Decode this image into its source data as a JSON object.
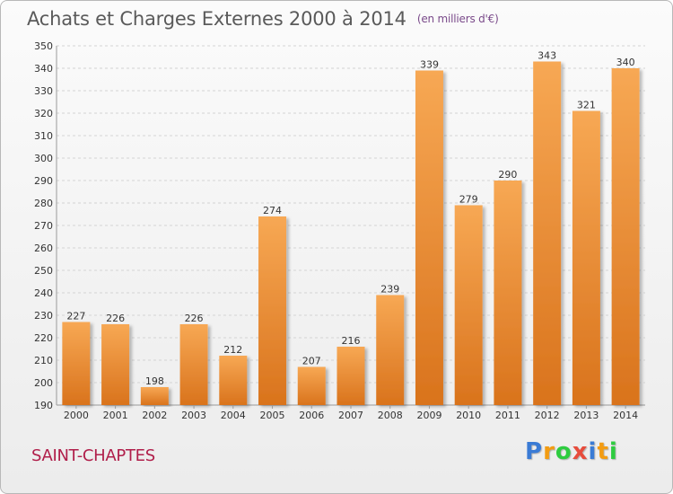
{
  "header": {
    "title": "Achats et Charges Externes 2000 à 2014",
    "unit": "(en milliers d'€)"
  },
  "commune": "SAINT-CHAPTES",
  "brand": {
    "letters": [
      "P",
      "r",
      "o",
      "x",
      "i",
      "t",
      "i"
    ],
    "colors": [
      "#3a7bd5",
      "#f39c12",
      "#2ecc40",
      "#e74c3c",
      "#3a7bd5",
      "#f39c12",
      "#2ecc40"
    ]
  },
  "colors": {
    "bar_light": "#f7a854",
    "bar_dark": "#d9731c",
    "title": "#5a5a5a",
    "commune": "#b01e4a"
  },
  "chart_data": {
    "type": "bar",
    "categories": [
      "2000",
      "2001",
      "2002",
      "2003",
      "2004",
      "2005",
      "2006",
      "2007",
      "2008",
      "2009",
      "2010",
      "2011",
      "2012",
      "2013",
      "2014"
    ],
    "values": [
      227,
      226,
      198,
      226,
      212,
      274,
      207,
      216,
      239,
      339,
      279,
      290,
      343,
      321,
      340
    ],
    "ylim": [
      190,
      350
    ],
    "yticks": [
      190,
      200,
      210,
      220,
      230,
      240,
      250,
      260,
      270,
      280,
      290,
      300,
      310,
      320,
      330,
      340,
      350
    ],
    "grid": true
  }
}
